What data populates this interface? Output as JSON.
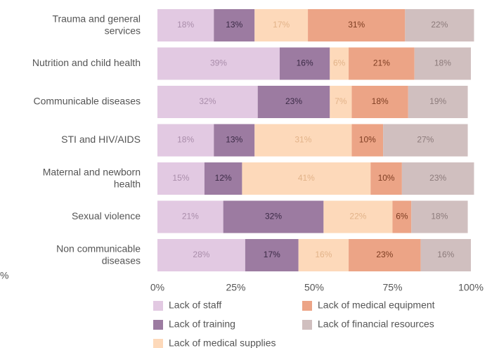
{
  "chart_data": {
    "type": "stacked_barh",
    "categories": [
      "Trauma and general services",
      "Nutrition and child health",
      "Communicable diseases",
      "STI and HIV/AIDS",
      "Maternal and newborn health",
      "Sexual violence",
      "Non communicable diseases"
    ],
    "series": [
      {
        "name": "Lack of staff",
        "color": "#e2c9e2",
        "label_color": "#a98daa",
        "values": [
          18,
          39,
          32,
          18,
          15,
          21,
          28
        ],
        "value_labels": [
          "18%",
          "39%",
          "32%",
          "18%",
          "15%",
          "21%",
          "28%"
        ]
      },
      {
        "name": "Lack of training",
        "color": "#9c7ba1",
        "label_color": "#3b2a46",
        "values": [
          13,
          16,
          23,
          13,
          12,
          32,
          17
        ],
        "value_labels": [
          "13%",
          "16%",
          "23%",
          "13%",
          "12%",
          "32%",
          "17%"
        ]
      },
      {
        "name": "Lack of medical supplies",
        "color": "#fdd9ba",
        "label_color": "#e2b389",
        "values": [
          17,
          6,
          7,
          31,
          41,
          22,
          16
        ],
        "value_labels": [
          "17%",
          "6%",
          "7%",
          "31%",
          "41%",
          "22%",
          "16%"
        ]
      },
      {
        "name": "Lack of medical equipment",
        "color": "#eca486",
        "label_color": "#7d3d22",
        "values": [
          31,
          21,
          18,
          10,
          10,
          6,
          23
        ],
        "value_labels": [
          "31%",
          "21%",
          "18%",
          "10%",
          "10%",
          "6%",
          "23%"
        ]
      },
      {
        "name": "Lack of financial resources",
        "color": "#d0bfbf",
        "label_color": "#8c7b7b",
        "values": [
          22,
          18,
          19,
          27,
          23,
          18,
          16
        ],
        "value_labels": [
          "22%",
          "18%",
          "19%",
          "27%",
          "23%",
          "18%",
          "16%"
        ]
      }
    ],
    "xlim": [
      0,
      100
    ],
    "xticks": [
      {
        "value": 0,
        "label": "0%"
      },
      {
        "value": 25,
        "label": "25%"
      },
      {
        "value": 50,
        "label": "50%"
      },
      {
        "value": 75,
        "label": "75%"
      },
      {
        "value": 100,
        "label": "100%"
      }
    ],
    "annotation": "%"
  }
}
